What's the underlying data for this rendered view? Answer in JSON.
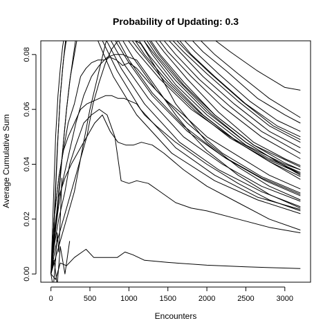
{
  "chart_data": {
    "type": "line",
    "title": "Probability of Updating: 0.3",
    "xlabel": "Encounters",
    "ylabel": "Average Cumulative Sum",
    "xlim": [
      -130,
      3330
    ],
    "ylim": [
      -0.003,
      0.085
    ],
    "xticks": [
      0,
      500,
      1000,
      1500,
      2000,
      2500,
      3000
    ],
    "yticks": [
      0.0,
      0.02,
      0.04,
      0.06,
      0.08
    ],
    "ytick_labels": [
      "0.00",
      "0.02",
      "0.04",
      "0.06",
      "0.08"
    ],
    "grid": false,
    "series": [
      {
        "x": [
          0,
          60,
          120,
          200,
          300,
          400,
          450,
          550,
          650,
          750,
          850,
          950,
          1050,
          1200,
          1500,
          2000,
          2500,
          3200
        ],
        "y": [
          0.0,
          -0.002,
          0.004,
          0.003,
          0.006,
          0.008,
          0.009,
          0.006,
          0.006,
          0.006,
          0.006,
          0.008,
          0.007,
          0.005,
          0.0042,
          0.0032,
          0.0026,
          0.002
        ]
      },
      {
        "x": [
          0,
          40,
          100,
          180,
          240,
          320,
          420,
          520,
          620,
          720,
          820,
          900,
          1000,
          1100,
          1250,
          1400,
          1600,
          1800,
          2000,
          2400,
          2800,
          3200
        ],
        "y": [
          0.0,
          0.01,
          0.02,
          0.03,
          0.04,
          0.047,
          0.055,
          0.058,
          0.06,
          0.058,
          0.05,
          0.034,
          0.033,
          0.034,
          0.033,
          0.03,
          0.026,
          0.024,
          0.023,
          0.02,
          0.017,
          0.015
        ]
      },
      {
        "x": [
          0,
          40,
          100,
          180,
          260,
          360,
          460,
          560,
          660,
          760,
          860,
          960,
          1060,
          1160,
          1300,
          1450,
          1700,
          2000,
          2400,
          2800,
          3200
        ],
        "y": [
          0.0,
          0.015,
          0.028,
          0.035,
          0.04,
          0.045,
          0.05,
          0.055,
          0.058,
          0.052,
          0.048,
          0.047,
          0.047,
          0.048,
          0.047,
          0.044,
          0.038,
          0.032,
          0.026,
          0.02,
          0.016
        ]
      },
      {
        "x": [
          0,
          40,
          100,
          160,
          220,
          300,
          380,
          460,
          540,
          620,
          700,
          780,
          860,
          940,
          1020,
          1100,
          1200,
          1350,
          1600,
          2000,
          2400,
          2800,
          3200
        ],
        "y": [
          0.0,
          0.02,
          0.035,
          0.045,
          0.05,
          0.055,
          0.06,
          0.062,
          0.063,
          0.064,
          0.065,
          0.065,
          0.064,
          0.064,
          0.063,
          0.062,
          0.058,
          0.054,
          0.048,
          0.04,
          0.033,
          0.027,
          0.023
        ]
      },
      {
        "x": [
          0,
          40,
          100,
          160,
          220,
          300,
          380,
          450,
          520,
          600,
          680,
          760,
          840,
          920,
          1000,
          1100,
          1250,
          1450,
          1700,
          2000,
          2400,
          2800,
          3200
        ],
        "y": [
          0.0,
          0.02,
          0.035,
          0.045,
          0.055,
          0.062,
          0.072,
          0.075,
          0.077,
          0.078,
          0.078,
          0.079,
          0.078,
          0.076,
          0.077,
          0.075,
          0.07,
          0.064,
          0.058,
          0.05,
          0.043,
          0.036,
          0.031
        ]
      },
      {
        "x": [
          0,
          40,
          100,
          160,
          240,
          320,
          420,
          520,
          620,
          720,
          820,
          920,
          1000,
          1100,
          1250,
          1400,
          1600,
          1800,
          2000,
          2400,
          2800,
          3200
        ],
        "y": [
          0.0,
          0.012,
          0.025,
          0.035,
          0.045,
          0.055,
          0.065,
          0.072,
          0.076,
          0.079,
          0.08,
          0.08,
          0.079,
          0.078,
          0.072,
          0.066,
          0.058,
          0.051,
          0.045,
          0.036,
          0.029,
          0.024
        ]
      },
      {
        "x": [
          0,
          60,
          160,
          260,
          360,
          460,
          540,
          620,
          700,
          780,
          860,
          940,
          1020,
          1150,
          1350,
          1600,
          2000,
          2400,
          2800,
          3200
        ],
        "y": [
          0.0,
          0.01,
          0.02,
          0.03,
          0.04,
          0.05,
          0.062,
          0.07,
          0.077,
          0.082,
          0.085,
          0.086,
          0.086,
          0.084,
          0.075,
          0.062,
          0.048,
          0.039,
          0.032,
          0.027
        ]
      },
      {
        "x": [
          0,
          40,
          80,
          120,
          160,
          190,
          220
        ],
        "y": [
          0.0,
          0.02,
          0.045,
          0.065,
          0.078,
          0.084,
          0.088
        ]
      },
      {
        "x": [
          0,
          30,
          60,
          90,
          120,
          150,
          175,
          200
        ],
        "y": [
          0.0,
          0.01,
          0.03,
          0.05,
          0.065,
          0.075,
          0.082,
          0.088
        ]
      },
      {
        "x": [
          0,
          30,
          60,
          90,
          120,
          150,
          180
        ],
        "y": [
          0.0,
          0.025,
          0.05,
          0.065,
          0.075,
          0.083,
          0.088
        ]
      },
      {
        "x": [
          0,
          50,
          100,
          150,
          200,
          250,
          300,
          350
        ],
        "y": [
          0.0,
          0.015,
          0.03,
          0.045,
          0.06,
          0.072,
          0.08,
          0.088
        ]
      },
      {
        "x": [
          0,
          40,
          80,
          120,
          160,
          200,
          240,
          280,
          330
        ],
        "y": [
          0.0,
          0.01,
          0.022,
          0.035,
          0.048,
          0.06,
          0.07,
          0.078,
          0.088
        ]
      },
      {
        "x": [
          0,
          100,
          200,
          300,
          400,
          500,
          600,
          650,
          700,
          750
        ],
        "y": [
          0.0,
          0.01,
          0.02,
          0.03,
          0.045,
          0.06,
          0.072,
          0.078,
          0.084,
          0.088
        ]
      },
      {
        "x": [
          900,
          1100,
          1400,
          1800,
          2300,
          2800,
          3200
        ],
        "y": [
          0.0885,
          0.081,
          0.071,
          0.06,
          0.05,
          0.042,
          0.037
        ]
      },
      {
        "x": [
          950,
          1150,
          1450,
          1850,
          2300,
          2800,
          3200
        ],
        "y": [
          0.0885,
          0.081,
          0.0705,
          0.0595,
          0.0495,
          0.0415,
          0.0365
        ]
      },
      {
        "x": [
          1000,
          1200,
          1500,
          1900,
          2400,
          2800,
          3200
        ],
        "y": [
          0.0885,
          0.08,
          0.07,
          0.059,
          0.048,
          0.041,
          0.0355
        ]
      },
      {
        "x": [
          1050,
          1250,
          1550,
          1950,
          2400,
          2800,
          3200
        ],
        "y": [
          0.0885,
          0.08,
          0.0695,
          0.058,
          0.048,
          0.041,
          0.0345
        ]
      },
      {
        "x": [
          1100,
          1300,
          1600,
          2000,
          2500,
          2900,
          3200
        ],
        "y": [
          0.0885,
          0.081,
          0.0705,
          0.059,
          0.048,
          0.041,
          0.036
        ]
      },
      {
        "x": [
          1150,
          1350,
          1650,
          2050,
          2500,
          2900,
          3200
        ],
        "y": [
          0.0885,
          0.08,
          0.07,
          0.0585,
          0.048,
          0.041,
          0.0365
        ]
      },
      {
        "x": [
          1200,
          1400,
          1700,
          2100,
          2600,
          3000,
          3200
        ],
        "y": [
          0.0885,
          0.08,
          0.07,
          0.058,
          0.047,
          0.0405,
          0.038
        ]
      },
      {
        "x": [
          1250,
          1450,
          1750,
          2150,
          2600,
          3000,
          3200
        ],
        "y": [
          0.0885,
          0.081,
          0.071,
          0.059,
          0.048,
          0.042,
          0.0395
        ]
      },
      {
        "x": [
          1300,
          1500,
          1800,
          2200,
          2700,
          3200
        ],
        "y": [
          0.0885,
          0.081,
          0.072,
          0.061,
          0.05,
          0.042
        ]
      },
      {
        "x": [
          1350,
          1600,
          1900,
          2300,
          2700,
          3200
        ],
        "y": [
          0.0885,
          0.08,
          0.071,
          0.061,
          0.052,
          0.044
        ]
      },
      {
        "x": [
          1400,
          1650,
          1950,
          2350,
          2800,
          3200
        ],
        "y": [
          0.0885,
          0.081,
          0.072,
          0.062,
          0.052,
          0.046
        ]
      },
      {
        "x": [
          1450,
          1700,
          2000,
          2400,
          2800,
          3200
        ],
        "y": [
          0.0885,
          0.081,
          0.073,
          0.063,
          0.054,
          0.048
        ]
      },
      {
        "x": [
          1500,
          1750,
          2050,
          2450,
          2850,
          3200
        ],
        "y": [
          0.0885,
          0.081,
          0.073,
          0.063,
          0.054,
          0.049
        ]
      },
      {
        "x": [
          1600,
          1850,
          2150,
          2550,
          2900,
          3200
        ],
        "y": [
          0.0885,
          0.081,
          0.073,
          0.063,
          0.056,
          0.052
        ]
      },
      {
        "x": [
          1700,
          1950,
          2250,
          2650,
          3000,
          3200
        ],
        "y": [
          0.0885,
          0.081,
          0.074,
          0.064,
          0.058,
          0.055
        ]
      },
      {
        "x": [
          1800,
          2100,
          2400,
          2800,
          3200
        ],
        "y": [
          0.0885,
          0.08,
          0.073,
          0.064,
          0.057
        ]
      },
      {
        "x": [
          1950,
          2300,
          2650,
          3000,
          3200
        ],
        "y": [
          0.0885,
          0.081,
          0.074,
          0.068,
          0.067
        ]
      },
      {
        "x": [
          800,
          1000,
          1300,
          1700,
          2200,
          2700,
          3200
        ],
        "y": [
          0.0885,
          0.078,
          0.066,
          0.054,
          0.043,
          0.035,
          0.029
        ]
      },
      {
        "x": [
          850,
          1050,
          1350,
          1750,
          2200,
          2700,
          3200
        ],
        "y": [
          0.0885,
          0.079,
          0.067,
          0.055,
          0.044,
          0.0355,
          0.0295
        ]
      },
      {
        "x": [
          700,
          950,
          1250,
          1700,
          2200,
          2700,
          3200
        ],
        "y": [
          0.0885,
          0.076,
          0.064,
          0.05,
          0.04,
          0.032,
          0.0265
        ]
      },
      {
        "x": [
          650,
          900,
          1200,
          1650,
          2150,
          2700,
          3200
        ],
        "y": [
          0.0885,
          0.075,
          0.062,
          0.048,
          0.038,
          0.03,
          0.0245
        ]
      },
      {
        "x": [
          600,
          850,
          1150,
          1600,
          2100,
          2650,
          3200
        ],
        "y": [
          0.0885,
          0.074,
          0.06,
          0.046,
          0.036,
          0.028,
          0.0235
        ]
      },
      {
        "x": [
          550,
          800,
          1100,
          1550,
          2100,
          2650,
          3200
        ],
        "y": [
          0.0885,
          0.072,
          0.058,
          0.044,
          0.034,
          0.027,
          0.022
        ]
      },
      {
        "x": [
          750,
          1000,
          1300,
          1750,
          2250,
          2750,
          3200
        ],
        "y": [
          0.0885,
          0.077,
          0.065,
          0.052,
          0.042,
          0.034,
          0.0285
        ]
      },
      {
        "x": [
          1120,
          1300,
          1600,
          2000,
          2500,
          3000,
          3200
        ],
        "y": [
          0.0885,
          0.08,
          0.069,
          0.058,
          0.047,
          0.04,
          0.038
        ]
      },
      {
        "x": [
          1180,
          1380,
          1700,
          2100,
          2600,
          3200
        ],
        "y": [
          0.0885,
          0.08,
          0.069,
          0.058,
          0.047,
          0.039
        ]
      },
      {
        "x": [
          1550,
          1800,
          2100,
          2500,
          2900,
          3200
        ],
        "y": [
          0.0885,
          0.08,
          0.072,
          0.062,
          0.054,
          0.05
        ]
      },
      {
        "x": [
          0,
          30,
          60,
          80,
          100,
          120,
          140
        ],
        "y": [
          0.0,
          -0.005,
          0.005,
          0.015,
          0.008,
          0.02,
          0.035
        ]
      },
      {
        "x": [
          0,
          40,
          80,
          120,
          180,
          240
        ],
        "y": [
          0.0,
          0.005,
          -0.004,
          0.01,
          0.0,
          0.012
        ]
      }
    ]
  }
}
